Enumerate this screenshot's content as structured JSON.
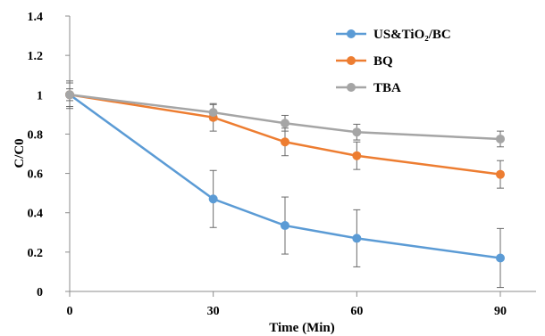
{
  "chart_data": {
    "type": "line",
    "xlabel": "Time (Min)",
    "ylabel": "C/C0",
    "xlim": [
      0,
      90
    ],
    "ylim": [
      0,
      1.4
    ],
    "x_ticks": [
      0,
      30,
      60,
      90
    ],
    "y_ticks": [
      0,
      0.2,
      0.4,
      0.6,
      0.8,
      1,
      1.2,
      1.4
    ],
    "y_tick_labels": [
      "0",
      "0.2",
      "0.4",
      "0.6",
      "0.8",
      "1",
      "1.2",
      "1.4"
    ],
    "x_tick_labels": [
      "0",
      "30",
      "60",
      "90"
    ],
    "grid": false,
    "legend_position": "top-right",
    "series": [
      {
        "name": "US&TiO₂/BC",
        "color": "#5b9bd5",
        "x": [
          0,
          30,
          45,
          60,
          90
        ],
        "y": [
          1.0,
          0.47,
          0.335,
          0.27,
          0.17
        ],
        "error": [
          0.07,
          0.145,
          0.145,
          0.145,
          0.15
        ]
      },
      {
        "name": "BQ",
        "color": "#ed7d31",
        "x": [
          0,
          30,
          45,
          60,
          90
        ],
        "y": [
          1.0,
          0.885,
          0.76,
          0.69,
          0.595
        ],
        "error": [
          0.06,
          0.07,
          0.07,
          0.07,
          0.07
        ]
      },
      {
        "name": "TBA",
        "color": "#a5a5a5",
        "x": [
          0,
          30,
          45,
          60,
          90
        ],
        "y": [
          1.0,
          0.91,
          0.855,
          0.81,
          0.775
        ],
        "error": [
          0.03,
          0.04,
          0.04,
          0.04,
          0.04
        ]
      }
    ]
  }
}
